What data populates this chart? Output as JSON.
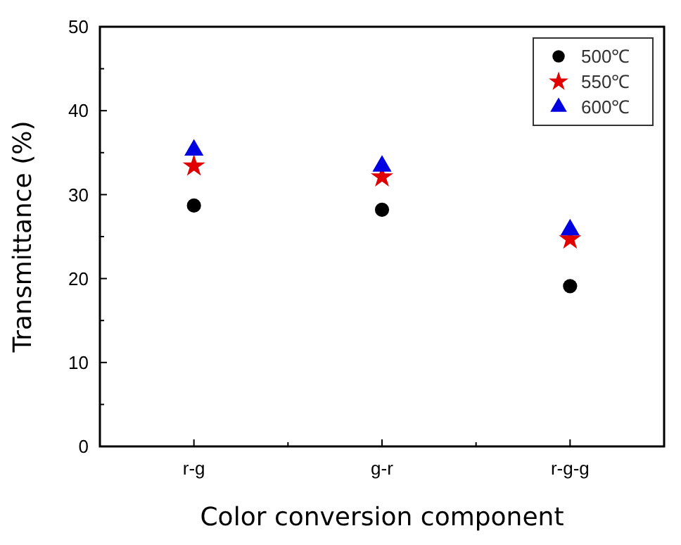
{
  "chart_data": {
    "type": "scatter",
    "xlabel": "Color conversion component",
    "ylabel": "Transmittance (%)",
    "categories": [
      "r-g",
      "g-r",
      "r-g-g"
    ],
    "series": [
      {
        "name": "500℃",
        "color": "#000000",
        "marker": "circle",
        "values": [
          28.7,
          28.2,
          19.1
        ]
      },
      {
        "name": "550℃",
        "color": "#e00000",
        "marker": "star",
        "values": [
          33.4,
          32.1,
          24.7
        ]
      },
      {
        "name": "600℃",
        "color": "#0000e0",
        "marker": "triangle",
        "values": [
          35.3,
          33.4,
          25.8
        ]
      }
    ],
    "ylim": [
      0,
      50
    ],
    "yticks": [
      0,
      10,
      20,
      30,
      40,
      50
    ],
    "legend": "top right",
    "grid": false
  }
}
